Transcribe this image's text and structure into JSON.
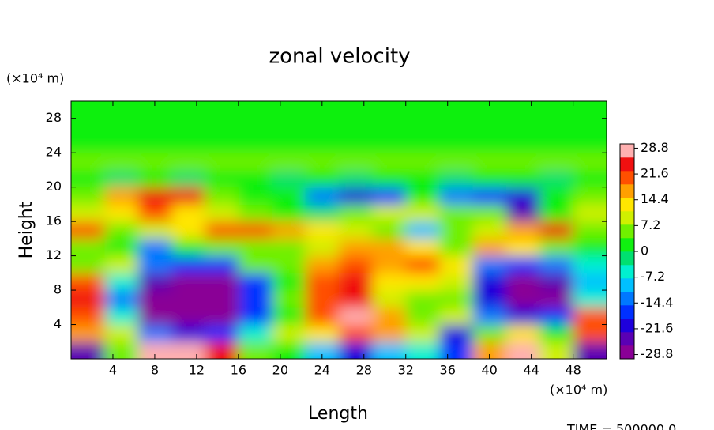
{
  "chart_data": {
    "type": "heatmap",
    "title": "zonal velocity",
    "xlabel": "Length",
    "ylabel": "Height",
    "xunit": "(×10⁴ m)",
    "yunit": "(×10⁴ m)",
    "footer": "TIME = 500000.0",
    "xlim": [
      0,
      51.2
    ],
    "ylim": [
      0,
      30
    ],
    "xticks": [
      4,
      8,
      12,
      16,
      20,
      24,
      28,
      32,
      36,
      40,
      44,
      48
    ],
    "yticks": [
      4,
      8,
      12,
      16,
      20,
      24,
      28
    ],
    "x": [
      1.6,
      4.8,
      8,
      11.2,
      14.4,
      17.6,
      20.8,
      24,
      27.2,
      30.4,
      33.6,
      36.8,
      40,
      43.2,
      46.4,
      49.6
    ],
    "y": [
      1,
      3,
      5,
      7,
      9,
      11,
      13,
      15,
      17,
      19,
      21,
      23,
      25,
      27,
      29
    ],
    "z": [
      [
        -26,
        6,
        28,
        28,
        26,
        6,
        2,
        -10,
        -22,
        -8,
        -4,
        -16,
        18,
        28,
        10,
        -26
      ],
      [
        16,
        8,
        -14,
        -20,
        -18,
        -6,
        8,
        14,
        22,
        18,
        8,
        -20,
        6,
        14,
        2,
        22
      ],
      [
        22,
        -6,
        -28,
        -30,
        -28,
        -16,
        0,
        20,
        28,
        16,
        4,
        10,
        -14,
        -22,
        -18,
        20
      ],
      [
        24,
        -12,
        -30,
        -30,
        -30,
        -18,
        6,
        22,
        26,
        10,
        4,
        6,
        -20,
        -30,
        -28,
        -6
      ],
      [
        20,
        -6,
        -26,
        -30,
        -28,
        -16,
        2,
        22,
        24,
        12,
        14,
        8,
        -20,
        -28,
        -24,
        -8
      ],
      [
        6,
        8,
        -14,
        -18,
        -16,
        4,
        6,
        18,
        22,
        16,
        20,
        14,
        -12,
        -18,
        -14,
        -4
      ],
      [
        4,
        2,
        -12,
        0,
        6,
        4,
        6,
        10,
        16,
        18,
        12,
        6,
        16,
        14,
        4,
        0
      ],
      [
        22,
        6,
        10,
        12,
        20,
        22,
        18,
        14,
        8,
        4,
        -8,
        6,
        10,
        18,
        26,
        6
      ],
      [
        8,
        12,
        22,
        14,
        8,
        6,
        2,
        -3,
        4,
        8,
        10,
        4,
        6,
        -26,
        2,
        10
      ],
      [
        5,
        18,
        25,
        24,
        5,
        3,
        0,
        -15,
        -22,
        -18,
        0,
        -14,
        -18,
        -20,
        2,
        4
      ],
      [
        0,
        -3,
        0,
        -3,
        0,
        0,
        -3,
        0,
        -3,
        0,
        0,
        -3,
        0,
        0,
        -3,
        0
      ],
      [
        4,
        4,
        4,
        4,
        4,
        4,
        4,
        4,
        4,
        4,
        4,
        4,
        4,
        4,
        4,
        4
      ],
      [
        3,
        3,
        3,
        3,
        3,
        3,
        3,
        3,
        3,
        3,
        3,
        3,
        3,
        3,
        3,
        3
      ],
      [
        2,
        2,
        2,
        2,
        2,
        2,
        2,
        2,
        2,
        2,
        2,
        2,
        2,
        2,
        2,
        2
      ],
      [
        2,
        2,
        2,
        2,
        2,
        2,
        2,
        2,
        2,
        2,
        2,
        2,
        2,
        2,
        2,
        2
      ]
    ],
    "clim": [
      -30,
      30
    ],
    "cticks": [
      28.8,
      21.6,
      14.4,
      7.2,
      0,
      -7.2,
      -14.4,
      -21.6,
      -28.8
    ],
    "colormap": [
      "#8a0096",
      "#5a00b4",
      "#1e00dc",
      "#0030ff",
      "#0078ff",
      "#00c0ff",
      "#00f0d0",
      "#00e070",
      "#10f010",
      "#70f000",
      "#d0f000",
      "#ffe600",
      "#ffa000",
      "#ff5000",
      "#f01010",
      "#ffb0b0"
    ]
  }
}
